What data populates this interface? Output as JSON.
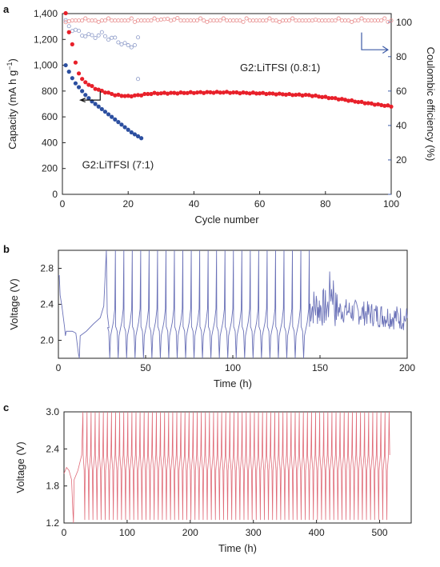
{
  "chart_data": [
    {
      "panel": "a",
      "type": "scatter",
      "xlabel": "Cycle number",
      "ylabel": "Capacity (mA h g",
      "ylabel_sup": "−1",
      "ylabel_close": ")",
      "y2label": "Coulombic efficiency (%)",
      "xlim": [
        0,
        100
      ],
      "ylim": [
        0,
        1400
      ],
      "y2lim": [
        0,
        105
      ],
      "xticks": [
        "0",
        "20",
        "40",
        "60",
        "80",
        "100"
      ],
      "yticks": [
        "0",
        "200",
        "400",
        "600",
        "800",
        "1,000",
        "1,200",
        "1,400"
      ],
      "y2ticks": [
        "0",
        "20",
        "40",
        "60",
        "80",
        "100"
      ],
      "colors": {
        "red": "#e8202a",
        "blue": "#2c4fa0",
        "ce_red": "#e88c8c",
        "ce_blue": "#8c9ac8",
        "right_axis": "#3c5aa6"
      },
      "series": [
        {
          "name": "G2:LiTFSI (0.8:1)",
          "axis": "left",
          "x": [
            1,
            2,
            3,
            4,
            5,
            6,
            8,
            10,
            12,
            14,
            16,
            18,
            20,
            22,
            24,
            26,
            28,
            30,
            35,
            40,
            45,
            50,
            55,
            60,
            65,
            70,
            75,
            80,
            85,
            90,
            95,
            100
          ],
          "y": [
            1400,
            1260,
            1160,
            1020,
            940,
            890,
            850,
            820,
            800,
            785,
            770,
            765,
            760,
            765,
            770,
            778,
            782,
            783,
            785,
            788,
            790,
            790,
            786,
            783,
            778,
            772,
            768,
            752,
            736,
            716,
            698,
            682
          ]
        },
        {
          "name": "G2:LiTFSI (7:1)",
          "axis": "left",
          "x": [
            1,
            2,
            3,
            4,
            5,
            6,
            7,
            8,
            9,
            10,
            11,
            12,
            13,
            14,
            15,
            16,
            17,
            18,
            19,
            20,
            21,
            22,
            23,
            24
          ],
          "y": [
            1000,
            950,
            900,
            860,
            830,
            800,
            770,
            745,
            720,
            700,
            680,
            660,
            640,
            620,
            600,
            580,
            560,
            540,
            520,
            500,
            480,
            465,
            450,
            435
          ]
        },
        {
          "name": "",
          "axis": "right",
          "x": [
            1,
            3,
            5,
            8,
            12,
            16,
            20,
            24,
            28,
            32,
            36,
            40,
            45,
            50,
            55,
            60,
            65,
            70,
            75,
            80,
            85,
            90,
            95,
            100
          ],
          "y": [
            100,
            101,
            101,
            101,
            101,
            101,
            101,
            101,
            101,
            102,
            101,
            101,
            101,
            101,
            101,
            101,
            101,
            101,
            101,
            101,
            101,
            101,
            101,
            101
          ]
        },
        {
          "name": "",
          "axis": "right",
          "x": [
            1,
            2,
            3,
            4,
            5,
            6,
            8,
            10,
            12,
            14,
            16,
            18,
            20,
            22,
            23
          ],
          "y": [
            100,
            98,
            96,
            95,
            94,
            93,
            92,
            92,
            93,
            91,
            90,
            88,
            86,
            87,
            90
          ],
          "outlier": {
            "x": 23,
            "y": 67
          }
        }
      ],
      "annotations": {
        "label_08": "G2:LiTFSI (0.8:1)",
        "label_71": "G2:LiTFSI (7:1)"
      }
    },
    {
      "panel": "b",
      "type": "line",
      "xlabel": "Time (h)",
      "ylabel": "Voltage (V)",
      "xlim": [
        0,
        200
      ],
      "ylim": [
        1.8,
        3.0
      ],
      "xticks": [
        "0",
        "50",
        "100",
        "150",
        "200"
      ],
      "yticks": [
        "2.0",
        "2.4",
        "2.8"
      ],
      "color": "#6b72b8",
      "regions": {
        "rest_end": 12,
        "cycle_start": 28,
        "cycle_end": 144,
        "cycle_count": 24,
        "noisy_end": 200
      }
    },
    {
      "panel": "c",
      "type": "line",
      "xlabel": "Time (h)",
      "ylabel": "Voltage (V)",
      "xlim": [
        0,
        550
      ],
      "ylim": [
        1.2,
        3.0
      ],
      "xticks": [
        "0",
        "100",
        "200",
        "300",
        "400",
        "500"
      ],
      "yticks": [
        "1.2",
        "1.8",
        "2.4",
        "3.0"
      ],
      "color": "#e06b78",
      "regions": {
        "rest_end": 15,
        "cycle_start": 30,
        "cycle_end": 515,
        "cycle_count": 75
      }
    }
  ]
}
